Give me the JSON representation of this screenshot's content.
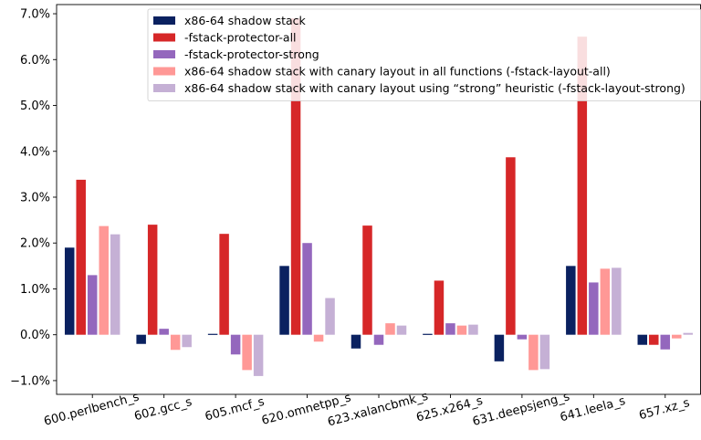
{
  "chart_data": {
    "type": "bar",
    "title": "",
    "xlabel": "",
    "ylabel": "",
    "ylim": [
      -1.3,
      7.2
    ],
    "yticks": [
      -1.0,
      0.0,
      1.0,
      2.0,
      3.0,
      4.0,
      5.0,
      6.0,
      7.0
    ],
    "ytick_labels": [
      "−1.0%",
      "0.0%",
      "1.0%",
      "2.0%",
      "3.0%",
      "4.0%",
      "5.0%",
      "6.0%",
      "7.0%"
    ],
    "grid": false,
    "legend_position": "top-right",
    "categories": [
      "600.perlbench_s",
      "602.gcc_s",
      "605.mcf_s",
      "620.omnetpp_s",
      "623.xalancbmk_s",
      "625.x264_s",
      "631.deepsjeng_s",
      "641.leela_s",
      "657.xz_s"
    ],
    "series": [
      {
        "name": "x86-64 shadow stack",
        "color": "#0a2160",
        "values": [
          1.9,
          -0.2,
          0.02,
          1.5,
          -0.3,
          0.02,
          -0.58,
          1.5,
          -0.22
        ]
      },
      {
        "name": "-fstack-protector-all",
        "color": "#d62728",
        "values": [
          3.38,
          2.4,
          2.2,
          6.9,
          2.38,
          1.18,
          3.87,
          6.5,
          -0.22
        ]
      },
      {
        "name": "-fstack-protector-strong",
        "color": "#9467bd",
        "values": [
          1.3,
          0.13,
          -0.43,
          2.0,
          -0.22,
          0.25,
          -0.1,
          1.14,
          -0.32
        ]
      },
      {
        "name": "x86-64 shadow stack with canary layout in all functions (-fstack-layout-all)",
        "color": "#ff9896",
        "values": [
          2.37,
          -0.33,
          -0.77,
          -0.15,
          0.25,
          0.2,
          -0.77,
          1.44,
          -0.08
        ]
      },
      {
        "name": "x86-64 shadow stack with canary layout using “strong” heuristic (-fstack-layout-strong)",
        "color": "#c5b0d5",
        "values": [
          2.19,
          -0.27,
          -0.9,
          0.8,
          0.2,
          0.22,
          -0.75,
          1.46,
          0.04
        ]
      }
    ]
  }
}
